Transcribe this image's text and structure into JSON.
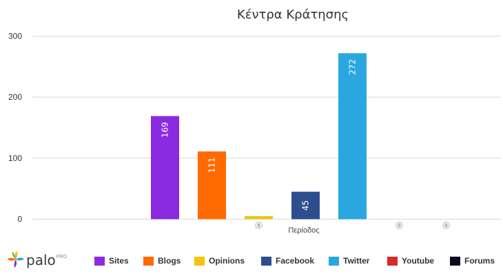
{
  "chart_data": {
    "type": "bar",
    "title": "Κέντρα Κράτησης",
    "xlabel": "Περίοδος",
    "ylabel": "",
    "ylim": [
      0,
      300
    ],
    "yticks": [
      0,
      100,
      200,
      300
    ],
    "grid": true,
    "legend_position": "bottom",
    "categories": [
      "Περίοδος"
    ],
    "series": [
      {
        "name": "Sites",
        "values": [
          169
        ],
        "color": "#8a2be2"
      },
      {
        "name": "Blogs",
        "values": [
          111
        ],
        "color": "#ff6a00"
      },
      {
        "name": "Opinions",
        "values": [
          5
        ],
        "color": "#f2c40f"
      },
      {
        "name": "Facebook",
        "values": [
          45
        ],
        "color": "#2e4d8f"
      },
      {
        "name": "Twitter",
        "values": [
          272
        ],
        "color": "#2aa7e0"
      },
      {
        "name": "Youtube",
        "values": [
          0
        ],
        "color": "#d42c2c"
      },
      {
        "name": "Forums",
        "values": [
          0
        ],
        "color": "#0b0b1e"
      }
    ],
    "data_labels": [
      "169",
      "111",
      "5",
      "45",
      "272",
      "0",
      "0"
    ]
  },
  "logo": {
    "text": "palo",
    "superscript": "PRO"
  }
}
